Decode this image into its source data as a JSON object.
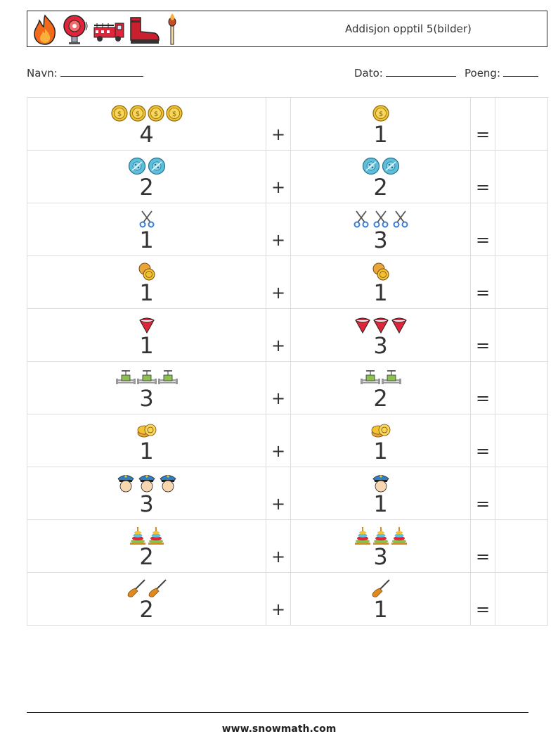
{
  "header": {
    "title": "Addisjon opptil 5(bilder)",
    "icons": [
      "fire-icon",
      "fire-alarm-icon",
      "fire-truck-icon",
      "boot-icon",
      "match-icon"
    ]
  },
  "fields": {
    "name_label": "Navn:",
    "date_label": "Dato:",
    "score_label": "Poeng:"
  },
  "problems": [
    {
      "a": 4,
      "a_label": "4",
      "b": 1,
      "b_label": "1",
      "icon": "coin-icon"
    },
    {
      "a": 2,
      "a_label": "2",
      "b": 2,
      "b_label": "2",
      "icon": "button-icon"
    },
    {
      "a": 1,
      "a_label": "1",
      "b": 3,
      "b_label": "3",
      "icon": "scissors-icon"
    },
    {
      "a": 1,
      "a_label": "1",
      "b": 1,
      "b_label": "1",
      "icon": "coins-pair-icon"
    },
    {
      "a": 1,
      "a_label": "1",
      "b": 3,
      "b_label": "3",
      "icon": "funnel-icon"
    },
    {
      "a": 3,
      "a_label": "3",
      "b": 2,
      "b_label": "2",
      "icon": "valve-icon"
    },
    {
      "a": 1,
      "a_label": "1",
      "b": 1,
      "b_label": "1",
      "icon": "coin-stack-icon"
    },
    {
      "a": 3,
      "a_label": "3",
      "b": 1,
      "b_label": "1",
      "icon": "police-icon"
    },
    {
      "a": 2,
      "a_label": "2",
      "b": 3,
      "b_label": "3",
      "icon": "ring-tower-icon"
    },
    {
      "a": 2,
      "a_label": "2",
      "b": 1,
      "b_label": "1",
      "icon": "broom-icon"
    }
  ],
  "operators": {
    "plus": "+",
    "equals": "="
  },
  "footer": {
    "url": "www.snowmath.com"
  },
  "colors": {
    "coin": "#f2c230",
    "button": "#5bc0de",
    "scissors": "#3b7dd8",
    "funnel": "#e0243a",
    "police": "#2d7fbf",
    "broom": "#e08a1e"
  }
}
